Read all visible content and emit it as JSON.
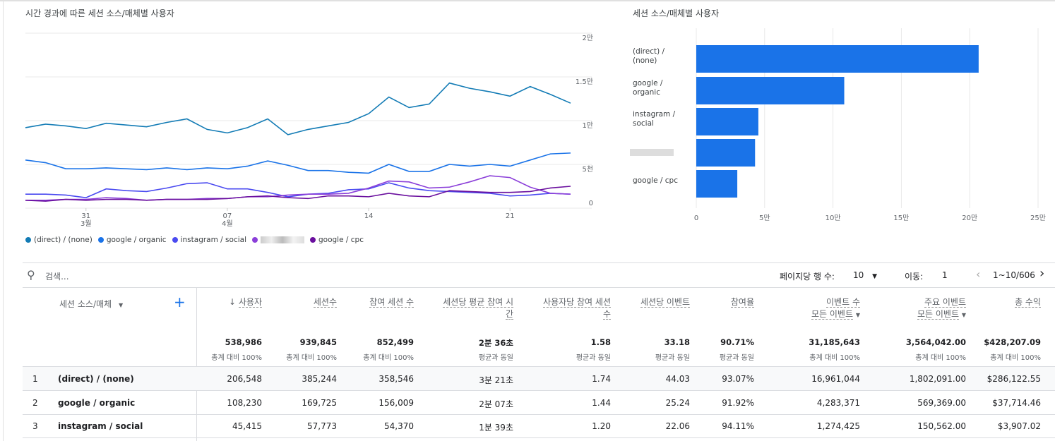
{
  "line_chart": {
    "title": "시간 경과에 따른 세션 소스/매체별 사용자",
    "y_ticks": [
      "0",
      "5천",
      "1만",
      "1.5만",
      "2만"
    ],
    "y_values": [
      0,
      5000,
      10000,
      15000,
      20000
    ],
    "x_ticks": [
      {
        "day": "31",
        "month": "3월",
        "index": 3
      },
      {
        "day": "07",
        "month": "4월",
        "index": 10
      },
      {
        "day": "14",
        "month": "",
        "index": 17
      },
      {
        "day": "21",
        "month": "",
        "index": 24
      }
    ],
    "chart_data": {
      "type": "line",
      "x_range": [
        "3월 28",
        "4월 24"
      ],
      "ylim": [
        0,
        20000
      ],
      "grid": true,
      "legend": "bottom",
      "series": [
        {
          "name": "(direct) / (none)",
          "color": "#127bb5",
          "values": [
            9200,
            9600,
            9400,
            9100,
            9700,
            9500,
            9300,
            9800,
            10200,
            9000,
            8600,
            9200,
            10200,
            8400,
            9000,
            9400,
            9800,
            10800,
            12700,
            11500,
            11900,
            14300,
            13700,
            13300,
            12800,
            13900,
            13000,
            12000
          ]
        },
        {
          "name": "google / organic",
          "color": "#1a73e8",
          "values": [
            5500,
            5200,
            4500,
            4500,
            4600,
            4500,
            4400,
            4600,
            4400,
            4600,
            4500,
            4800,
            5400,
            4900,
            4300,
            4300,
            4100,
            4000,
            5000,
            4200,
            4200,
            5000,
            4800,
            5000,
            4800,
            5500,
            6200,
            6300
          ]
        },
        {
          "name": "instagram / social",
          "color": "#4a4af0",
          "values": [
            1600,
            1600,
            1500,
            1200,
            2200,
            2000,
            1900,
            2300,
            2800,
            2900,
            2200,
            2200,
            1800,
            1300,
            1600,
            1700,
            2100,
            2200,
            2900,
            2300,
            2000,
            1900,
            1800,
            1700,
            1400,
            1500,
            1700,
            1600
          ]
        },
        {
          "name": "",
          "color": "#8b3fd9",
          "values": [
            900,
            900,
            1000,
            1000,
            1200,
            1100,
            900,
            1000,
            1000,
            1100,
            1100,
            1300,
            1300,
            1500,
            1600,
            1600,
            1700,
            2300,
            3100,
            3000,
            2300,
            2400,
            3000,
            3700,
            3500,
            2400,
            1700,
            1600
          ]
        },
        {
          "name": "google / cpc",
          "color": "#6a0f9e",
          "values": [
            900,
            800,
            1000,
            900,
            1000,
            1000,
            900,
            1000,
            1000,
            1000,
            1100,
            1300,
            1400,
            1200,
            1100,
            1400,
            1400,
            1300,
            1700,
            1400,
            1300,
            2000,
            1900,
            1800,
            1800,
            1900,
            2300,
            2500
          ]
        }
      ]
    }
  },
  "bar_chart": {
    "title": "세션 소스/매체별 사용자",
    "chart_data": {
      "type": "bar",
      "orientation": "horizontal",
      "categories": [
        "(direct) / (none)",
        "google / organic",
        "instagram / social",
        "",
        "google / cpc"
      ],
      "values": [
        206548,
        108230,
        45415,
        43000,
        30000
      ],
      "xlim": [
        0,
        250000
      ],
      "x_ticks": [
        "0",
        "5만",
        "10만",
        "15만",
        "20만",
        "25만"
      ],
      "color": "#1a73e8"
    }
  },
  "toolbar": {
    "search_placeholder": "검색...",
    "rows_label": "페이지당 행 수:",
    "rows_value": "10",
    "goto_label": "이동:",
    "goto_value": "1",
    "range": "1~10/606"
  },
  "table": {
    "dimension_header": "세션 소스/매체",
    "columns": [
      {
        "label": "사용자",
        "sub": "",
        "total": "538,986",
        "total_sub": "총계 대비 100%",
        "sorted": true
      },
      {
        "label": "세션수",
        "sub": "",
        "total": "939,845",
        "total_sub": "총계 대비 100%"
      },
      {
        "label": "참여 세션 수",
        "sub": "",
        "total": "852,499",
        "total_sub": "총계 대비 100%"
      },
      {
        "label": "세션당 평균 참여 시간",
        "sub": "",
        "total": "2분 36초",
        "total_sub": "평균과 동일"
      },
      {
        "label": "사용자당 참여 세션수",
        "sub": "",
        "total": "1.58",
        "total_sub": "평균과 동일"
      },
      {
        "label": "세션당 이벤트",
        "sub": "",
        "total": "33.18",
        "total_sub": "평균과 동일"
      },
      {
        "label": "참여율",
        "sub": "",
        "total": "90.71%",
        "total_sub": "평균과 동일"
      },
      {
        "label": "이벤트 수",
        "sub": "모든 이벤트",
        "total": "31,185,643",
        "total_sub": "총계 대비 100%"
      },
      {
        "label": "주요 이벤트",
        "sub": "모든 이벤트",
        "total": "3,564,042.00",
        "total_sub": "총계 대비 100%"
      },
      {
        "label": "총 수익",
        "sub": "",
        "total": "$428,207.09",
        "total_sub": "총계 대비 100%"
      }
    ],
    "rows": [
      {
        "rank": "1",
        "name": "(direct) / (none)",
        "cells": [
          "206,548",
          "385,244",
          "358,546",
          "3분 21초",
          "1.74",
          "44.03",
          "93.07%",
          "16,961,044",
          "1,802,091.00",
          "$286,122.55"
        ]
      },
      {
        "rank": "2",
        "name": "google / organic",
        "cells": [
          "108,230",
          "169,725",
          "156,009",
          "2분 07초",
          "1.44",
          "25.24",
          "91.92%",
          "4,283,371",
          "569,369.00",
          "$37,714.46"
        ]
      },
      {
        "rank": "3",
        "name": "instagram / social",
        "cells": [
          "45,415",
          "57,773",
          "54,370",
          "1분 39초",
          "1.20",
          "22.06",
          "94.11%",
          "1,274,425",
          "150,562.00",
          "$3,907.02"
        ]
      }
    ]
  }
}
